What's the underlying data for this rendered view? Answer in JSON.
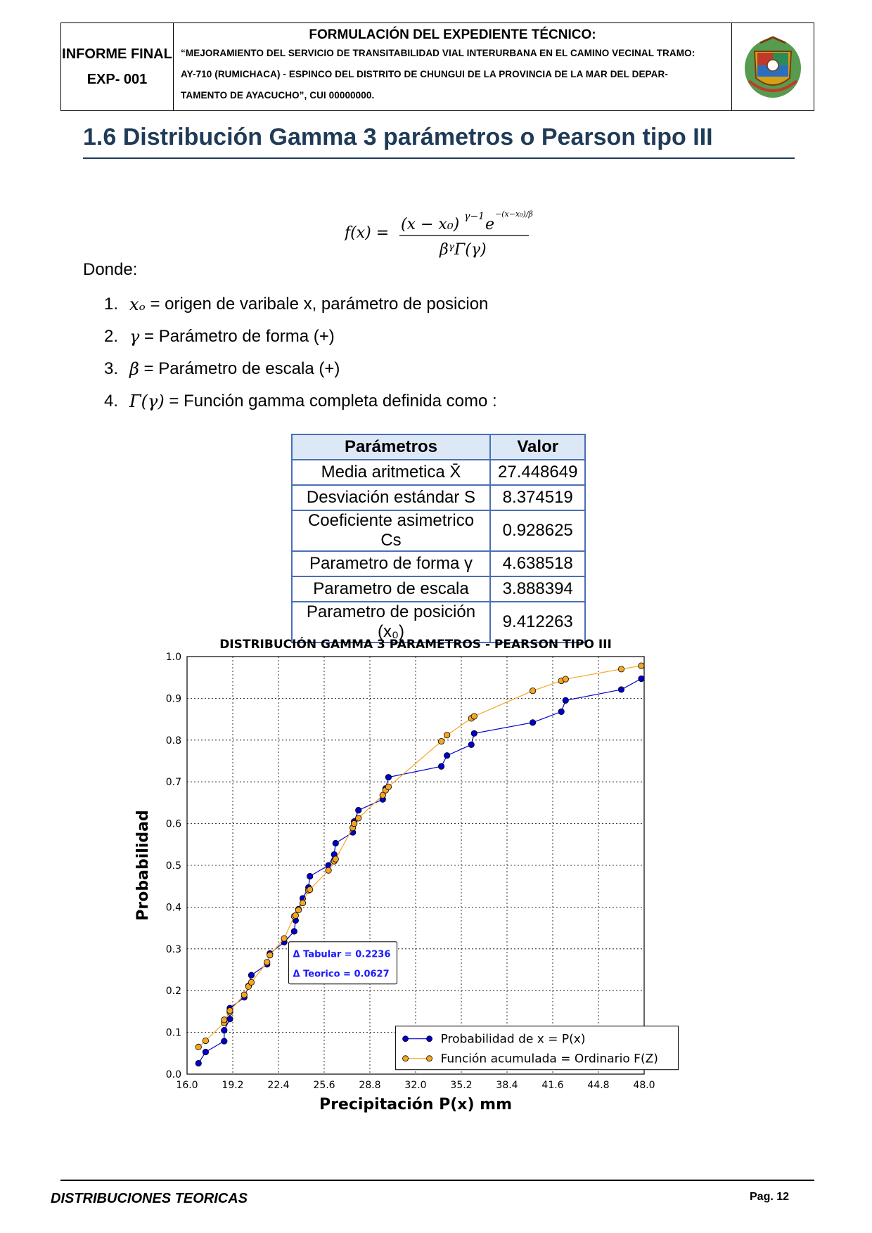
{
  "header": {
    "left_line1": "INFORME FINAL",
    "left_line2": "EXP- 001",
    "title": "FORMULACIÓN DEL EXPEDIENTE TÉCNICO:",
    "line1": "“MEJORAMIENTO DEL SERVICIO DE TRANSITABILIDAD VIAL INTERURBANA EN EL CAMINO VECINAL TRAMO:",
    "line2": "AY-710 (RUMICHACA) - ESPINCO DEL DISTRITO DE CHUNGUI DE LA PROVINCIA DE LA MAR DEL DEPAR-",
    "line3": "TAMENTO DE AYACUCHO”, CUI 00000000."
  },
  "section": {
    "title": "1.6  Distribución Gamma 3 parámetros o Pearson tipo III"
  },
  "formula": {
    "lhs": "f(x) =",
    "numerator": "(x − x₀)",
    "exp": "γ−1",
    "e": "e",
    "exp2": "−(x−x₀)/β",
    "denominator": "βᵞΓ(γ)"
  },
  "donde": "Donde:",
  "list": [
    {
      "num": "1.",
      "sym": "xₒ",
      "text": "= origen de varibale x, parámetro de posicion"
    },
    {
      "num": "2.",
      "sym": "γ",
      "text": "= Parámetro de forma (+)"
    },
    {
      "num": "3.",
      "sym": "β",
      "text": "= Parámetro de escala (+)"
    },
    {
      "num": "4.",
      "sym": "Γ(γ)",
      "text": "= Función gamma completa definida como :"
    }
  ],
  "table": {
    "headers": [
      "Parámetros",
      "Valor"
    ],
    "rows": [
      [
        "Media aritmetica X̄",
        "27.448649"
      ],
      [
        "Desviación estándar S",
        "8.374519"
      ],
      [
        "Coeficiente asimetrico Cs",
        "0.928625"
      ],
      [
        "Parametro de forma γ",
        "4.638518"
      ],
      [
        "Parametro de escala",
        "3.888394"
      ],
      [
        "Parametro de posición (x₀)",
        "9.412263"
      ]
    ]
  },
  "chart_data": {
    "type": "line",
    "title": "DISTRIBUCIÓN GAMMA 3 PARAMETROS - PEARSON TIPO III",
    "xlabel": "Precipitación P(x) mm",
    "ylabel": "Probabilidad",
    "xlim": [
      16.0,
      48.0
    ],
    "ylim": [
      0.0,
      1.0
    ],
    "xticks": [
      "16.0",
      "19.2",
      "22.4",
      "25.6",
      "28.8",
      "32.0",
      "35.2",
      "38.4",
      "41.6",
      "44.8",
      "48.0"
    ],
    "yticks": [
      "0.0",
      "0.1",
      "0.2",
      "0.3",
      "0.4",
      "0.5",
      "0.6",
      "0.7",
      "0.8",
      "0.9",
      "1.0"
    ],
    "grid": true,
    "legend_position": "bottom-right",
    "annotations": [
      "Δ Tabular = 0.2236",
      "Δ Teorico = 0.0627"
    ],
    "series": [
      {
        "name": "Probabilidad de x = P(x)",
        "color": "#0000cc",
        "x": [
          16.8,
          17.3,
          18.6,
          18.6,
          19.0,
          19.0,
          20.0,
          20.3,
          20.5,
          21.6,
          21.8,
          22.8,
          23.5,
          23.6,
          23.8,
          24.1,
          24.5,
          24.6,
          25.9,
          26.3,
          26.4,
          27.6,
          27.7,
          28.0,
          29.7,
          29.9,
          30.1,
          33.8,
          34.2,
          35.9,
          36.1,
          40.2,
          42.2,
          42.5,
          46.4,
          47.8
        ],
        "y": [
          0.026,
          0.053,
          0.079,
          0.105,
          0.132,
          0.158,
          0.184,
          0.211,
          0.237,
          0.263,
          0.289,
          0.316,
          0.342,
          0.368,
          0.395,
          0.421,
          0.447,
          0.474,
          0.5,
          0.526,
          0.553,
          0.579,
          0.605,
          0.632,
          0.658,
          0.684,
          0.711,
          0.737,
          0.763,
          0.789,
          0.816,
          0.842,
          0.868,
          0.895,
          0.921,
          0.947
        ]
      },
      {
        "name": "Función acumulada = Ordinario F(Z)",
        "color": "#f5a623",
        "x": [
          16.8,
          17.3,
          18.6,
          18.6,
          19.0,
          19.0,
          20.0,
          20.3,
          20.5,
          21.6,
          21.8,
          22.8,
          23.5,
          23.6,
          23.8,
          24.1,
          24.5,
          24.6,
          25.9,
          26.3,
          26.4,
          27.6,
          27.7,
          28.0,
          29.7,
          29.9,
          30.1,
          33.8,
          34.2,
          35.9,
          36.1,
          40.2,
          42.2,
          42.5,
          46.4,
          47.8
        ],
        "y": [
          0.065,
          0.08,
          0.123,
          0.13,
          0.148,
          0.152,
          0.19,
          0.21,
          0.22,
          0.268,
          0.285,
          0.325,
          0.378,
          0.38,
          0.393,
          0.41,
          0.44,
          0.442,
          0.488,
          0.51,
          0.515,
          0.59,
          0.6,
          0.613,
          0.668,
          0.68,
          0.688,
          0.797,
          0.812,
          0.852,
          0.857,
          0.918,
          0.942,
          0.946,
          0.97,
          0.978
        ]
      }
    ]
  },
  "footer": {
    "left": "DISTRIBUCIONES TEORICAS",
    "right": "Pag. 12"
  }
}
